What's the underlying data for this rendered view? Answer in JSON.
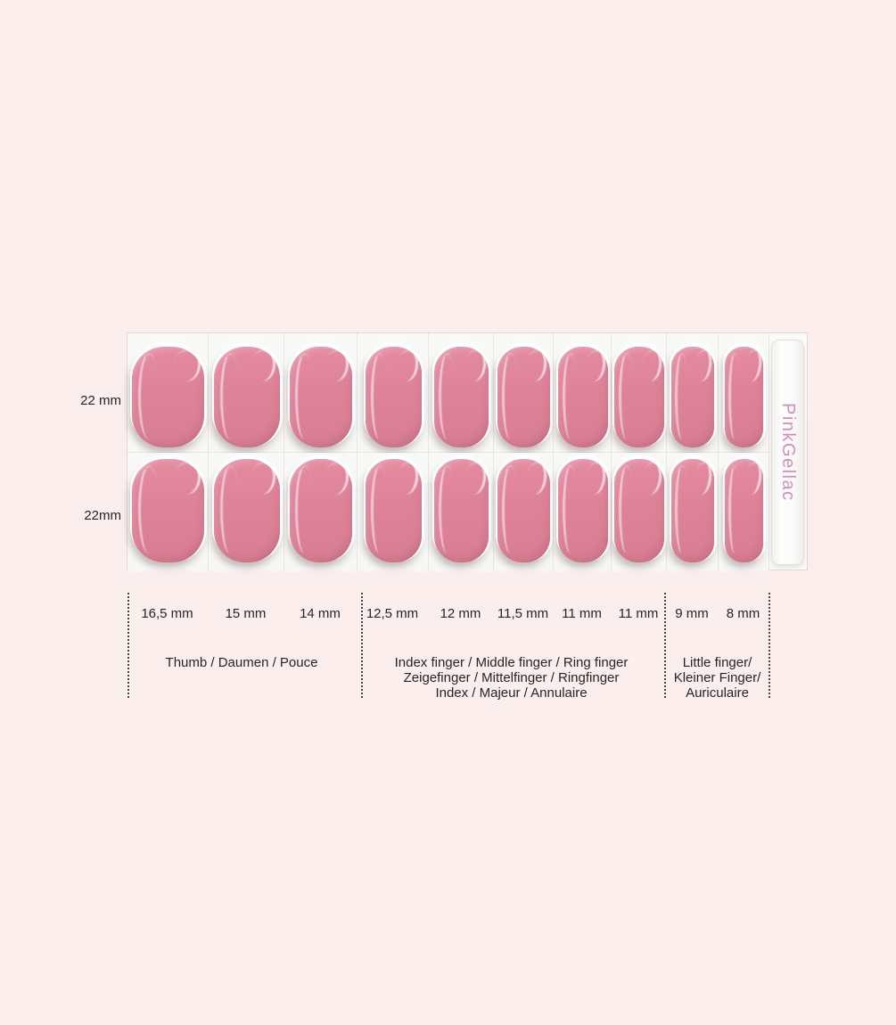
{
  "page": {
    "background_color": "#fbeeed"
  },
  "tray": {
    "brand": "PinkGellac",
    "brand_color": "#cf8fb8",
    "nail_color": "#de8298",
    "rows": [
      {
        "label": "22 mm"
      },
      {
        "label": "22mm"
      }
    ],
    "columns": [
      {
        "size_label": "16,5 mm",
        "width_mm": 16.5
      },
      {
        "size_label": "15 mm",
        "width_mm": 15
      },
      {
        "size_label": "14 mm",
        "width_mm": 14
      },
      {
        "size_label": "12,5 mm",
        "width_mm": 12.5
      },
      {
        "size_label": "12 mm",
        "width_mm": 12
      },
      {
        "size_label": "11,5 mm",
        "width_mm": 11.5
      },
      {
        "size_label": "11 mm",
        "width_mm": 11
      },
      {
        "size_label": "11 mm",
        "width_mm": 11
      },
      {
        "size_label": "9 mm",
        "width_mm": 9
      },
      {
        "size_label": "8 mm",
        "width_mm": 8
      }
    ]
  },
  "legend": {
    "groups": [
      {
        "lines": [
          "Thumb / Daumen / Pouce"
        ]
      },
      {
        "lines": [
          "Index finger / Middle finger / Ring finger",
          "Zeigefinger / Mittelfinger / Ringfinger",
          "Index / Majeur / Annulaire"
        ]
      },
      {
        "lines": [
          "Little finger/",
          "Kleiner Finger/",
          "Auriculaire"
        ]
      }
    ]
  }
}
